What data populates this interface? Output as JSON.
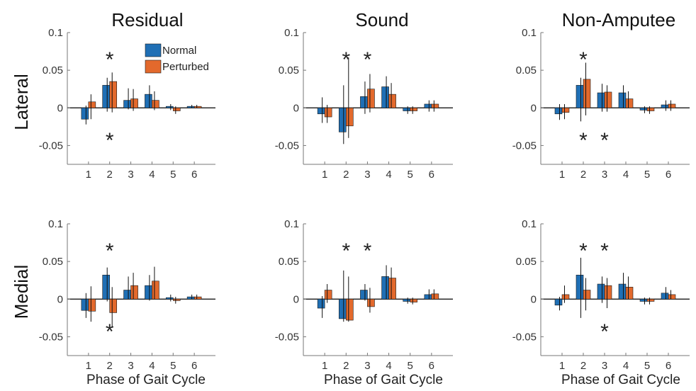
{
  "figure": {
    "column_titles": [
      "Residual",
      "Sound",
      "Non-Amputee"
    ],
    "row_labels": [
      "Lateral",
      "Medial"
    ],
    "xlabel": "Phase of Gait Cycle",
    "legend": [
      "Normal",
      "Perturbed"
    ],
    "colors": {
      "normal": "#1f6fb5",
      "perturbed": "#e3692c"
    },
    "significance_marker": "*"
  },
  "chart_data": [
    {
      "type": "bar",
      "row": "Lateral",
      "column": "Residual",
      "categories": [
        "1",
        "2",
        "3",
        "4",
        "5",
        "6"
      ],
      "ylim": [
        -0.075,
        0.1
      ],
      "yticks": [
        0.1,
        0.05,
        0,
        -0.05
      ],
      "ytick_labels": [
        "0.1",
        "0.05",
        "0",
        "-0.05"
      ],
      "legend": true,
      "series": [
        {
          "name": "Normal",
          "values": [
            -0.015,
            0.03,
            0.01,
            0.018,
            0.002,
            0.002
          ],
          "err_low": [
            -0.022,
            -0.005,
            -0.002,
            0.0,
            -0.003,
            0.0
          ],
          "err_high": [
            0.003,
            0.04,
            0.026,
            0.03,
            0.005,
            0.004
          ]
        },
        {
          "name": "Perturbed",
          "values": [
            0.008,
            0.035,
            0.012,
            0.01,
            -0.004,
            0.002
          ],
          "err_low": [
            -0.015,
            -0.006,
            -0.004,
            -0.003,
            -0.008,
            0.0
          ],
          "err_high": [
            0.018,
            0.047,
            0.025,
            0.022,
            0.002,
            0.004
          ]
        }
      ],
      "stars": [
        {
          "category": "2",
          "position": "top"
        },
        {
          "category": "2",
          "position": "bottom"
        }
      ]
    },
    {
      "type": "bar",
      "row": "Lateral",
      "column": "Sound",
      "categories": [
        "1",
        "2",
        "3",
        "4",
        "5",
        "6"
      ],
      "ylim": [
        -0.075,
        0.1
      ],
      "yticks": [
        0.1,
        0.05,
        0,
        -0.05
      ],
      "ytick_labels": [
        "0.1",
        "0.05",
        "0",
        "-0.05"
      ],
      "legend": false,
      "series": [
        {
          "name": "Normal",
          "values": [
            -0.008,
            -0.032,
            0.015,
            0.028,
            -0.004,
            0.005
          ],
          "err_low": [
            -0.02,
            -0.048,
            -0.008,
            0.0,
            -0.008,
            -0.005
          ],
          "err_high": [
            0.014,
            0.03,
            0.035,
            0.042,
            0.002,
            0.01
          ]
        },
        {
          "name": "Perturbed",
          "values": [
            -0.012,
            -0.024,
            0.025,
            0.018,
            -0.004,
            0.005
          ],
          "err_low": [
            -0.02,
            -0.04,
            -0.006,
            0.0,
            -0.008,
            -0.005
          ],
          "err_high": [
            0.004,
            0.067,
            0.045,
            0.033,
            0.002,
            0.01
          ]
        }
      ],
      "stars": [
        {
          "category": "2",
          "position": "top"
        },
        {
          "category": "3",
          "position": "top"
        }
      ]
    },
    {
      "type": "bar",
      "row": "Lateral",
      "column": "Non-Amputee",
      "categories": [
        "1",
        "2",
        "3",
        "4",
        "5",
        "6"
      ],
      "ylim": [
        -0.075,
        0.1
      ],
      "yticks": [
        0.1,
        0.05,
        0,
        -0.05
      ],
      "ytick_labels": [
        "0.1",
        "0.05",
        "0",
        "-0.05"
      ],
      "legend": false,
      "series": [
        {
          "name": "Normal",
          "values": [
            -0.008,
            0.03,
            0.02,
            0.02,
            -0.003,
            0.004
          ],
          "err_low": [
            -0.016,
            -0.018,
            -0.005,
            0.0,
            -0.007,
            -0.004
          ],
          "err_high": [
            0.005,
            0.04,
            0.032,
            0.03,
            0.002,
            0.01
          ]
        },
        {
          "name": "Perturbed",
          "values": [
            -0.006,
            0.038,
            0.021,
            0.012,
            -0.004,
            0.005
          ],
          "err_low": [
            -0.015,
            -0.01,
            -0.005,
            0.0,
            -0.008,
            -0.004
          ],
          "err_high": [
            0.005,
            0.06,
            0.03,
            0.022,
            0.002,
            0.01
          ]
        }
      ],
      "stars": [
        {
          "category": "2",
          "position": "top"
        },
        {
          "category": "2",
          "position": "bottom"
        },
        {
          "category": "3",
          "position": "bottom"
        }
      ]
    },
    {
      "type": "bar",
      "row": "Medial",
      "column": "Residual",
      "categories": [
        "1",
        "2",
        "3",
        "4",
        "5",
        "6"
      ],
      "ylim": [
        -0.075,
        0.1
      ],
      "yticks": [
        0.1,
        0.05,
        0,
        -0.05
      ],
      "ytick_labels": [
        "0.1",
        "0.05",
        "0",
        "-0.05"
      ],
      "legend": false,
      "series": [
        {
          "name": "Normal",
          "values": [
            -0.015,
            0.032,
            0.012,
            0.018,
            0.002,
            0.003
          ],
          "err_low": [
            -0.025,
            -0.003,
            0.0,
            -0.002,
            -0.003,
            0.0
          ],
          "err_high": [
            0.008,
            0.042,
            0.03,
            0.032,
            0.006,
            0.006
          ]
        },
        {
          "name": "Perturbed",
          "values": [
            -0.016,
            -0.018,
            0.018,
            0.024,
            -0.002,
            0.003
          ],
          "err_low": [
            -0.03,
            -0.038,
            0.0,
            0.0,
            -0.006,
            0.0
          ],
          "err_high": [
            0.017,
            0.016,
            0.035,
            0.043,
            0.003,
            0.006
          ]
        }
      ],
      "stars": [
        {
          "category": "2",
          "position": "top"
        },
        {
          "category": "2",
          "position": "bottom"
        }
      ]
    },
    {
      "type": "bar",
      "row": "Medial",
      "column": "Sound",
      "categories": [
        "1",
        "2",
        "3",
        "4",
        "5",
        "6"
      ],
      "ylim": [
        -0.075,
        0.1
      ],
      "yticks": [
        0.1,
        0.05,
        0,
        -0.05
      ],
      "ytick_labels": [
        "0.1",
        "0.05",
        "0",
        "-0.05"
      ],
      "legend": false,
      "series": [
        {
          "name": "Normal",
          "values": [
            -0.012,
            -0.026,
            0.012,
            0.03,
            -0.003,
            0.006
          ],
          "err_low": [
            -0.025,
            -0.03,
            -0.002,
            0.0,
            -0.006,
            0.0
          ],
          "err_high": [
            0.004,
            0.038,
            0.02,
            0.045,
            0.002,
            0.013
          ]
        },
        {
          "name": "Perturbed",
          "values": [
            0.012,
            -0.028,
            -0.01,
            0.028,
            -0.004,
            0.007
          ],
          "err_low": [
            -0.005,
            -0.03,
            -0.018,
            0.0,
            -0.007,
            0.0
          ],
          "err_high": [
            0.02,
            0.03,
            0.015,
            0.042,
            0.002,
            0.013
          ]
        }
      ],
      "stars": [
        {
          "category": "2",
          "position": "top"
        },
        {
          "category": "3",
          "position": "top"
        }
      ]
    },
    {
      "type": "bar",
      "row": "Medial",
      "column": "Non-Amputee",
      "categories": [
        "1",
        "2",
        "3",
        "4",
        "5",
        "6"
      ],
      "ylim": [
        -0.075,
        0.1
      ],
      "yticks": [
        0.1,
        0.05,
        0,
        -0.05
      ],
      "ytick_labels": [
        "0.1",
        "0.05",
        "0",
        "-0.05"
      ],
      "legend": false,
      "series": [
        {
          "name": "Normal",
          "values": [
            -0.008,
            0.032,
            0.02,
            0.02,
            -0.003,
            0.008
          ],
          "err_low": [
            -0.015,
            -0.025,
            -0.005,
            0.0,
            -0.007,
            0.0
          ],
          "err_high": [
            0.003,
            0.055,
            0.03,
            0.035,
            0.002,
            0.016
          ]
        },
        {
          "name": "Perturbed",
          "values": [
            0.006,
            0.012,
            0.018,
            0.016,
            -0.003,
            0.006
          ],
          "err_low": [
            -0.005,
            -0.015,
            -0.012,
            0.0,
            -0.007,
            0.0
          ],
          "err_high": [
            0.018,
            0.028,
            0.028,
            0.03,
            0.002,
            0.012
          ]
        }
      ],
      "stars": [
        {
          "category": "2",
          "position": "top"
        },
        {
          "category": "3",
          "position": "top"
        },
        {
          "category": "3",
          "position": "bottom"
        }
      ]
    }
  ]
}
